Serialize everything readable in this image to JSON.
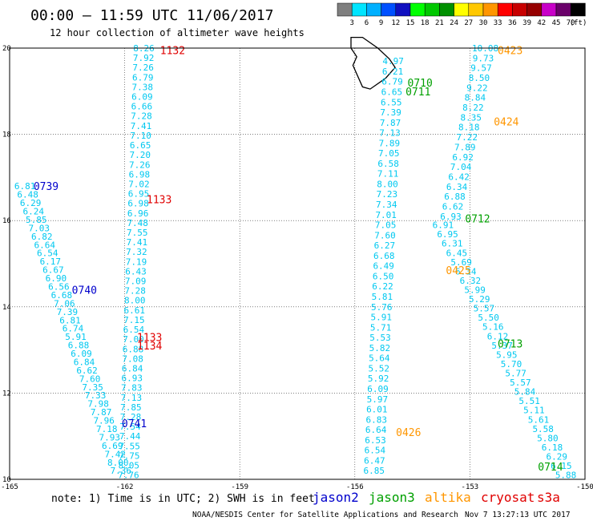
{
  "header": {
    "title": "00:00 – 11:59 UTC 11/06/2017",
    "subtitle": "12 hour collection of altimeter wave heights"
  },
  "colorbar": {
    "labels": [
      "3",
      "6",
      "9",
      "12",
      "15",
      "18",
      "21",
      "24",
      "27",
      "30",
      "33",
      "36",
      "39",
      "42",
      "45",
      "70"
    ],
    "unit": "(ft)",
    "colors": [
      "#7f7f7f",
      "#00e5ff",
      "#00b0ff",
      "#0050ff",
      "#1010c0",
      "#00ff00",
      "#00c800",
      "#009000",
      "#ffff00",
      "#ffc800",
      "#ff9600",
      "#ff0000",
      "#c80000",
      "#960000",
      "#c800c8",
      "#6a006a",
      "#000000"
    ]
  },
  "footer": {
    "note": "note: 1) Time is in UTC; 2) SWH is in feet",
    "credit": "NOAA/NESDIS Center for Satellite Applications and Research",
    "timestamp": "Nov  7 13:27:13 UTC 2017"
  },
  "legend": [
    {
      "name": "jason2",
      "color": "#0000cc"
    },
    {
      "name": "jason3",
      "color": "#00a000"
    },
    {
      "name": "altika",
      "color": "#ff9600"
    },
    {
      "name": "cryosat",
      "color": "#e00000"
    },
    {
      "name": "s3a",
      "color": "#e00000"
    }
  ],
  "chart_data": {
    "type": "scatter",
    "xlim": [
      -165,
      -150
    ],
    "ylim": [
      10,
      20
    ],
    "x_ticks": [
      "-165",
      "-162",
      "-159",
      "-156",
      "-153",
      "-150"
    ],
    "x_tick_values": [
      -165,
      -162,
      -159,
      -156,
      -153,
      -150
    ],
    "y_ticks": [
      "10",
      "12",
      "14",
      "16",
      "18",
      "20"
    ],
    "y_tick_values": [
      10,
      12,
      14,
      16,
      18,
      20
    ],
    "grid": true,
    "point_color": "#00c8f0",
    "tracks": [
      {
        "x0": -161.5,
        "y0": 20.0,
        "x1": -161.9,
        "y1": 10.1,
        "values": [
          "8.26",
          "7.92",
          "7.26",
          "6.79",
          "7.38",
          "6.09",
          "6.66",
          "7.28",
          "7.41",
          "7.10",
          "6.65",
          "7.20",
          "7.26",
          "6.98",
          "7.02",
          "6.95",
          "6.98",
          "6.96",
          "7.48",
          "7.55",
          "7.41",
          "7.32",
          "7.19",
          "6.43",
          "7.09",
          "7.28",
          "8.00",
          "6.61",
          "7.15",
          "6.54",
          "7.00",
          "6.88",
          "7.08",
          "6.84",
          "6.93",
          "7.83",
          "7.13",
          "7.85",
          "7.28",
          "7.54",
          "7.44",
          "7.55",
          "7.75",
          "8.05",
          "7.76"
        ]
      },
      {
        "x0": -164.6,
        "y0": 16.8,
        "x1": -162.1,
        "y1": 10.2,
        "values": [
          "6.81",
          "6.48",
          "6.29",
          "6.24",
          "5.85",
          "7.03",
          "6.82",
          "6.64",
          "6.54",
          "6.17",
          "6.67",
          "6.90",
          "6.56",
          "6.68",
          "7.06",
          "7.39",
          "6.81",
          "6.74",
          "5.91",
          "6.88",
          "6.09",
          "6.84",
          "6.62",
          "7.60",
          "7.35",
          "7.33",
          "7.98",
          "7.87",
          "7.96",
          "7.18",
          "7.93",
          "6.69",
          "7.42",
          "8.00",
          "7.36"
        ]
      },
      {
        "x0": -155.0,
        "y0": 19.7,
        "x1": -155.5,
        "y1": 10.2,
        "values": [
          "4.97",
          "6.21",
          "6.79",
          "6.65",
          "6.55",
          "7.39",
          "7.87",
          "7.13",
          "7.89",
          "7.05",
          "6.58",
          "7.11",
          "8.00",
          "7.23",
          "7.34",
          "7.01",
          "7.05",
          "7.60",
          "6.27",
          "6.68",
          "6.49",
          "6.50",
          "6.22",
          "5.81",
          "5.76",
          "5.91",
          "5.71",
          "5.53",
          "5.82",
          "5.64",
          "5.52",
          "5.92",
          "6.09",
          "5.97",
          "6.01",
          "6.83",
          "6.64",
          "6.53",
          "6.54",
          "6.47",
          "6.85"
        ]
      },
      {
        "x0": -152.6,
        "y0": 20.0,
        "x1": -153.5,
        "y1": 16.1,
        "values": [
          "10.08",
          "9.73",
          "9.57",
          "8.50",
          "9.22",
          "8.84",
          "8.22",
          "8.35",
          "8.18",
          "7.22",
          "7.89",
          "6.92",
          "7.04",
          "6.42",
          "6.34",
          "6.88",
          "6.62",
          "6.93"
        ]
      },
      {
        "x0": -153.7,
        "y0": 15.9,
        "x1": -150.5,
        "y1": 10.1,
        "values": [
          "6.91",
          "6.95",
          "6.31",
          "6.45",
          "5.69",
          "6.34",
          "6.32",
          "5.99",
          "5.29",
          "5.57",
          "5.50",
          "5.16",
          "6.12",
          "5.37",
          "5.95",
          "5.70",
          "5.77",
          "5.57",
          "5.84",
          "5.51",
          "5.11",
          "5.61",
          "5.58",
          "5.80",
          "6.18",
          "6.29",
          "6.15",
          "5.88"
        ]
      }
    ],
    "time_labels": [
      {
        "text": "1132",
        "x": -160.75,
        "y": 19.95,
        "sat": "cryosat"
      },
      {
        "text": "0739",
        "x": -164.05,
        "y": 16.8,
        "sat": "jason2"
      },
      {
        "text": "1133",
        "x": -161.1,
        "y": 16.5,
        "sat": "cryosat"
      },
      {
        "text": "0740",
        "x": -163.05,
        "y": 14.4,
        "sat": "jason2"
      },
      {
        "text": "1133",
        "x": -161.35,
        "y": 13.3,
        "sat": "cryosat"
      },
      {
        "text": "1134",
        "x": -161.35,
        "y": 13.1,
        "sat": "cryosat"
      },
      {
        "text": "0741",
        "x": -161.75,
        "y": 11.3,
        "sat": "jason2"
      },
      {
        "text": "0710",
        "x": -154.3,
        "y": 19.2,
        "sat": "jason3"
      },
      {
        "text": "0711",
        "x": -154.35,
        "y": 19.0,
        "sat": "jason3"
      },
      {
        "text": "0423",
        "x": -151.95,
        "y": 19.95,
        "sat": "altika"
      },
      {
        "text": "0424",
        "x": -152.05,
        "y": 18.3,
        "sat": "altika"
      },
      {
        "text": "0712",
        "x": -152.8,
        "y": 16.05,
        "sat": "jason3"
      },
      {
        "text": "0425",
        "x": -153.3,
        "y": 14.85,
        "sat": "altika"
      },
      {
        "text": "0713",
        "x": -151.95,
        "y": 13.15,
        "sat": "jason3"
      },
      {
        "text": "0426",
        "x": -154.6,
        "y": 11.1,
        "sat": "altika"
      },
      {
        "text": "0714",
        "x": -150.9,
        "y": 10.3,
        "sat": "jason3"
      }
    ],
    "island_outline": [
      [
        -156.1,
        20.25
      ],
      [
        -155.8,
        20.25
      ],
      [
        -155.4,
        20.0
      ],
      [
        -155.1,
        19.75
      ],
      [
        -154.95,
        19.55
      ],
      [
        -155.2,
        19.3
      ],
      [
        -155.6,
        19.05
      ],
      [
        -155.8,
        19.1
      ],
      [
        -155.9,
        19.3
      ],
      [
        -156.05,
        19.6
      ],
      [
        -155.95,
        19.8
      ],
      [
        -156.1,
        20.0
      ],
      [
        -156.1,
        20.25
      ]
    ]
  }
}
